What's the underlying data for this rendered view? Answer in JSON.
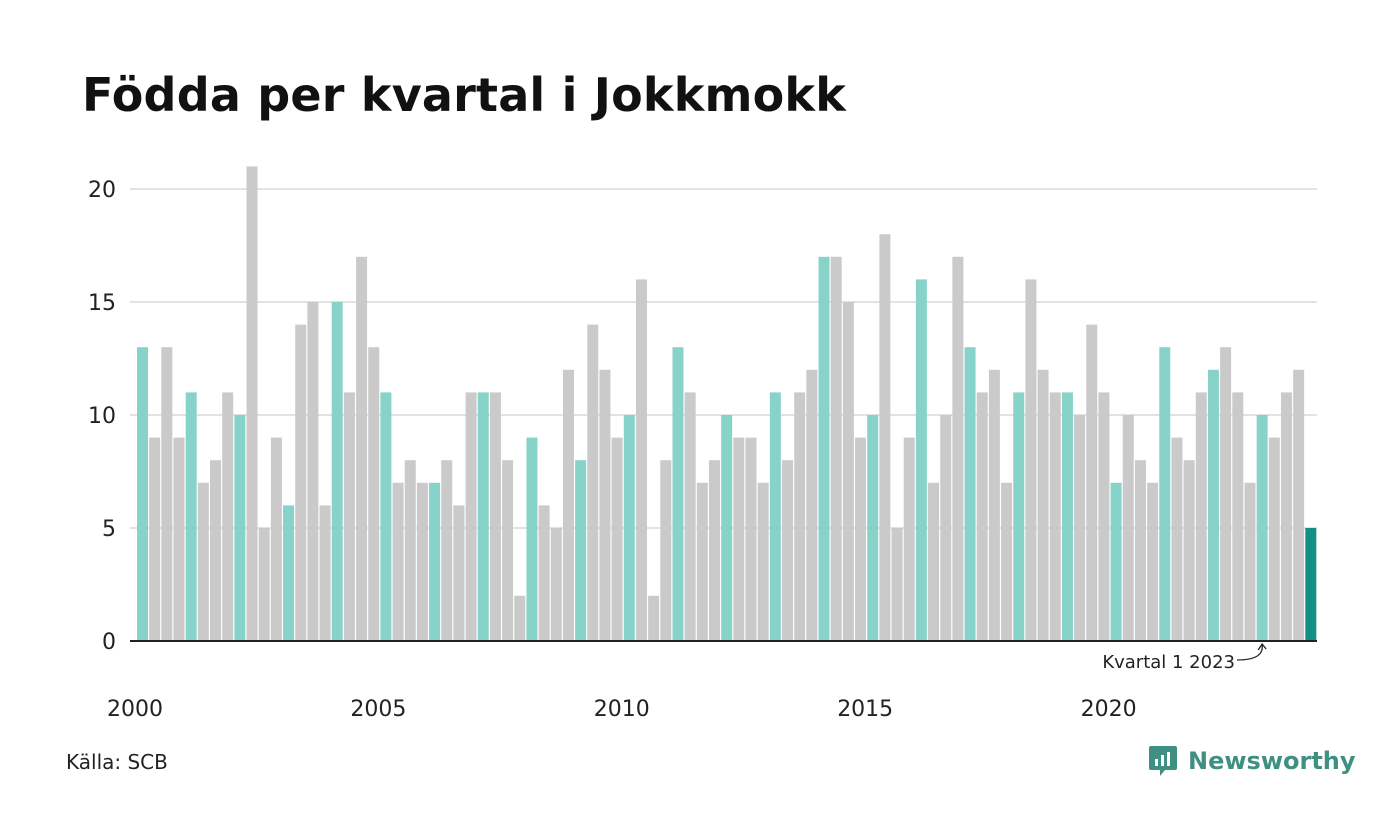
{
  "title": "Födda per kvartal i Jokkmokk",
  "source": "Källa: SCB",
  "brand": {
    "name": "Newsworthy",
    "icon": "newsworthy-logo-icon"
  },
  "colors": {
    "q1_bar": "#88d3c9",
    "other_bar": "#cacaca",
    "highlight_bar": "#148f85",
    "grid": "#e2e2e2",
    "axis": "#222222",
    "brand": "#3f8f82"
  },
  "chart_data": {
    "type": "bar",
    "title": "Födda per kvartal i Jokkmokk",
    "xlabel": "",
    "ylabel": "",
    "ylim": [
      0,
      21
    ],
    "yticks": [
      0,
      5,
      10,
      15,
      20
    ],
    "xticks": [
      {
        "label": "2000",
        "year": 2000
      },
      {
        "label": "2005",
        "year": 2005
      },
      {
        "label": "2010",
        "year": 2010
      },
      {
        "label": "2015",
        "year": 2015
      },
      {
        "label": "2020",
        "year": 2020
      }
    ],
    "start": {
      "year": 2000,
      "quarter": 1
    },
    "grid": true,
    "values": [
      13,
      9,
      13,
      9,
      11,
      7,
      8,
      11,
      10,
      21,
      5,
      9,
      6,
      14,
      15,
      6,
      15,
      11,
      17,
      13,
      11,
      7,
      8,
      7,
      7,
      8,
      6,
      11,
      11,
      11,
      8,
      2,
      9,
      6,
      5,
      12,
      8,
      14,
      12,
      9,
      10,
      16,
      2,
      8,
      13,
      11,
      7,
      8,
      10,
      9,
      9,
      7,
      11,
      8,
      11,
      12,
      17,
      17,
      15,
      9,
      10,
      18,
      5,
      9,
      16,
      7,
      10,
      17,
      13,
      11,
      12,
      7,
      11,
      16,
      12,
      11,
      11,
      10,
      14,
      11,
      7,
      10,
      8,
      7,
      13,
      9,
      8,
      11,
      12,
      13,
      11,
      7,
      10,
      9,
      11,
      12,
      5
    ],
    "annotation": {
      "text": "Kvartal 1 2023"
    }
  }
}
